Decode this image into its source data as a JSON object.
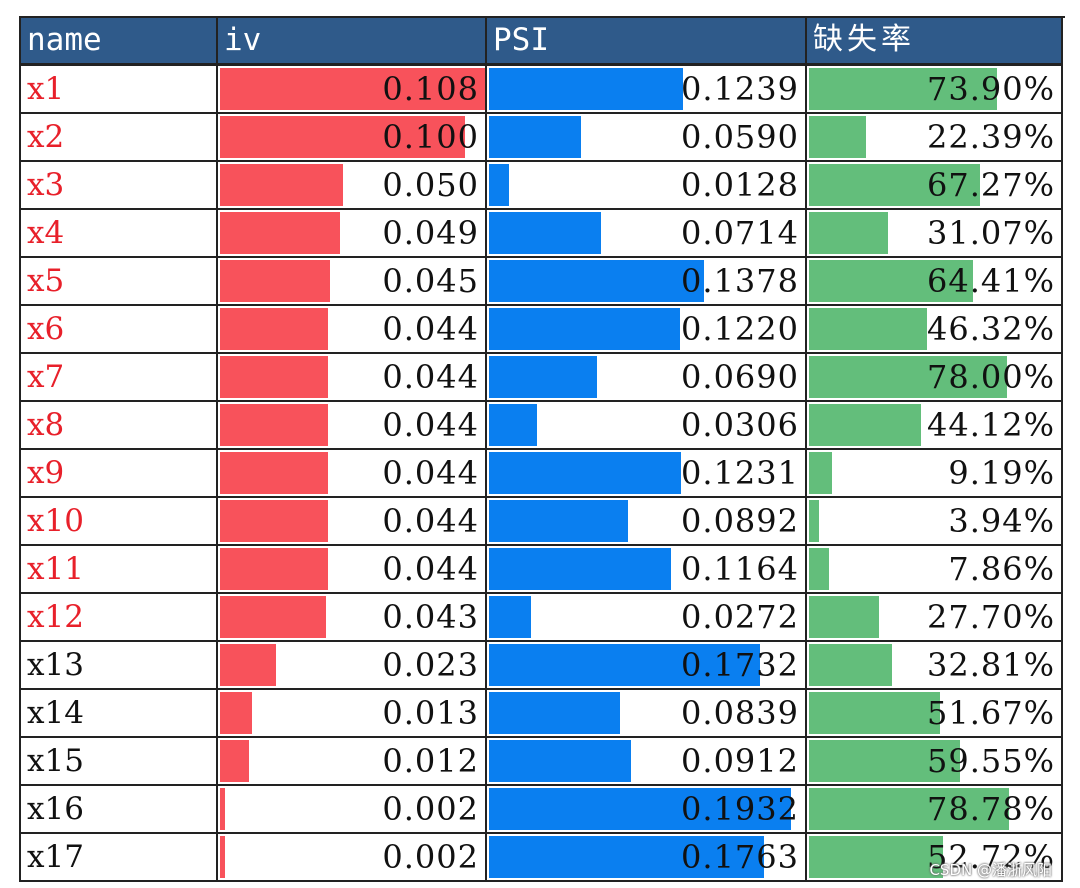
{
  "colors": {
    "header_bg": "#2f5a8a",
    "header_text": "#ffffff",
    "iv_bar": "#f8525b",
    "psi_bar": "#0a7ff0",
    "missing_bar": "#63be7b",
    "highlight_name": "#e8202a",
    "normal_name": "#111111"
  },
  "headers": {
    "name": "name",
    "iv": "iv",
    "psi": "PSI",
    "missing": "缺失率"
  },
  "scales": {
    "iv_max": 0.108,
    "psi_max": 0.1932,
    "missing_max": 78.78
  },
  "rows": [
    {
      "name": "x1",
      "highlight": true,
      "iv": 0.108,
      "iv_text": "0.108",
      "psi": 0.1239,
      "psi_text": "0.1239",
      "missing": 73.9,
      "missing_text": "73.90%"
    },
    {
      "name": "x2",
      "highlight": true,
      "iv": 0.1,
      "iv_text": "0.100",
      "psi": 0.059,
      "psi_text": "0.0590",
      "missing": 22.39,
      "missing_text": "22.39%"
    },
    {
      "name": "x3",
      "highlight": true,
      "iv": 0.05,
      "iv_text": "0.050",
      "psi": 0.0128,
      "psi_text": "0.0128",
      "missing": 67.27,
      "missing_text": "67.27%"
    },
    {
      "name": "x4",
      "highlight": true,
      "iv": 0.049,
      "iv_text": "0.049",
      "psi": 0.0714,
      "psi_text": "0.0714",
      "missing": 31.07,
      "missing_text": "31.07%"
    },
    {
      "name": "x5",
      "highlight": true,
      "iv": 0.045,
      "iv_text": "0.045",
      "psi": 0.1378,
      "psi_text": "0.1378",
      "missing": 64.41,
      "missing_text": "64.41%"
    },
    {
      "name": "x6",
      "highlight": true,
      "iv": 0.044,
      "iv_text": "0.044",
      "psi": 0.122,
      "psi_text": "0.1220",
      "missing": 46.32,
      "missing_text": "46.32%"
    },
    {
      "name": "x7",
      "highlight": true,
      "iv": 0.044,
      "iv_text": "0.044",
      "psi": 0.069,
      "psi_text": "0.0690",
      "missing": 78.0,
      "missing_text": "78.00%"
    },
    {
      "name": "x8",
      "highlight": true,
      "iv": 0.044,
      "iv_text": "0.044",
      "psi": 0.0306,
      "psi_text": "0.0306",
      "missing": 44.12,
      "missing_text": "44.12%"
    },
    {
      "name": "x9",
      "highlight": true,
      "iv": 0.044,
      "iv_text": "0.044",
      "psi": 0.1231,
      "psi_text": "0.1231",
      "missing": 9.19,
      "missing_text": "9.19%"
    },
    {
      "name": "x10",
      "highlight": true,
      "iv": 0.044,
      "iv_text": "0.044",
      "psi": 0.0892,
      "psi_text": "0.0892",
      "missing": 3.94,
      "missing_text": "3.94%"
    },
    {
      "name": "x11",
      "highlight": true,
      "iv": 0.044,
      "iv_text": "0.044",
      "psi": 0.1164,
      "psi_text": "0.1164",
      "missing": 7.86,
      "missing_text": "7.86%"
    },
    {
      "name": "x12",
      "highlight": true,
      "iv": 0.043,
      "iv_text": "0.043",
      "psi": 0.0272,
      "psi_text": "0.0272",
      "missing": 27.7,
      "missing_text": "27.70%"
    },
    {
      "name": "x13",
      "highlight": false,
      "iv": 0.023,
      "iv_text": "0.023",
      "psi": 0.1732,
      "psi_text": "0.1732",
      "missing": 32.81,
      "missing_text": "32.81%"
    },
    {
      "name": "x14",
      "highlight": false,
      "iv": 0.013,
      "iv_text": "0.013",
      "psi": 0.0839,
      "psi_text": "0.0839",
      "missing": 51.67,
      "missing_text": "51.67%"
    },
    {
      "name": "x15",
      "highlight": false,
      "iv": 0.012,
      "iv_text": "0.012",
      "psi": 0.0912,
      "psi_text": "0.0912",
      "missing": 59.55,
      "missing_text": "59.55%"
    },
    {
      "name": "x16",
      "highlight": false,
      "iv": 0.002,
      "iv_text": "0.002",
      "psi": 0.1932,
      "psi_text": "0.1932",
      "missing": 78.78,
      "missing_text": "78.78%"
    },
    {
      "name": "x17",
      "highlight": false,
      "iv": 0.002,
      "iv_text": "0.002",
      "psi": 0.1763,
      "psi_text": "0.1763",
      "missing": 52.72,
      "missing_text": "52.72%"
    }
  ],
  "watermark": "CSDN @潘浙风阳"
}
